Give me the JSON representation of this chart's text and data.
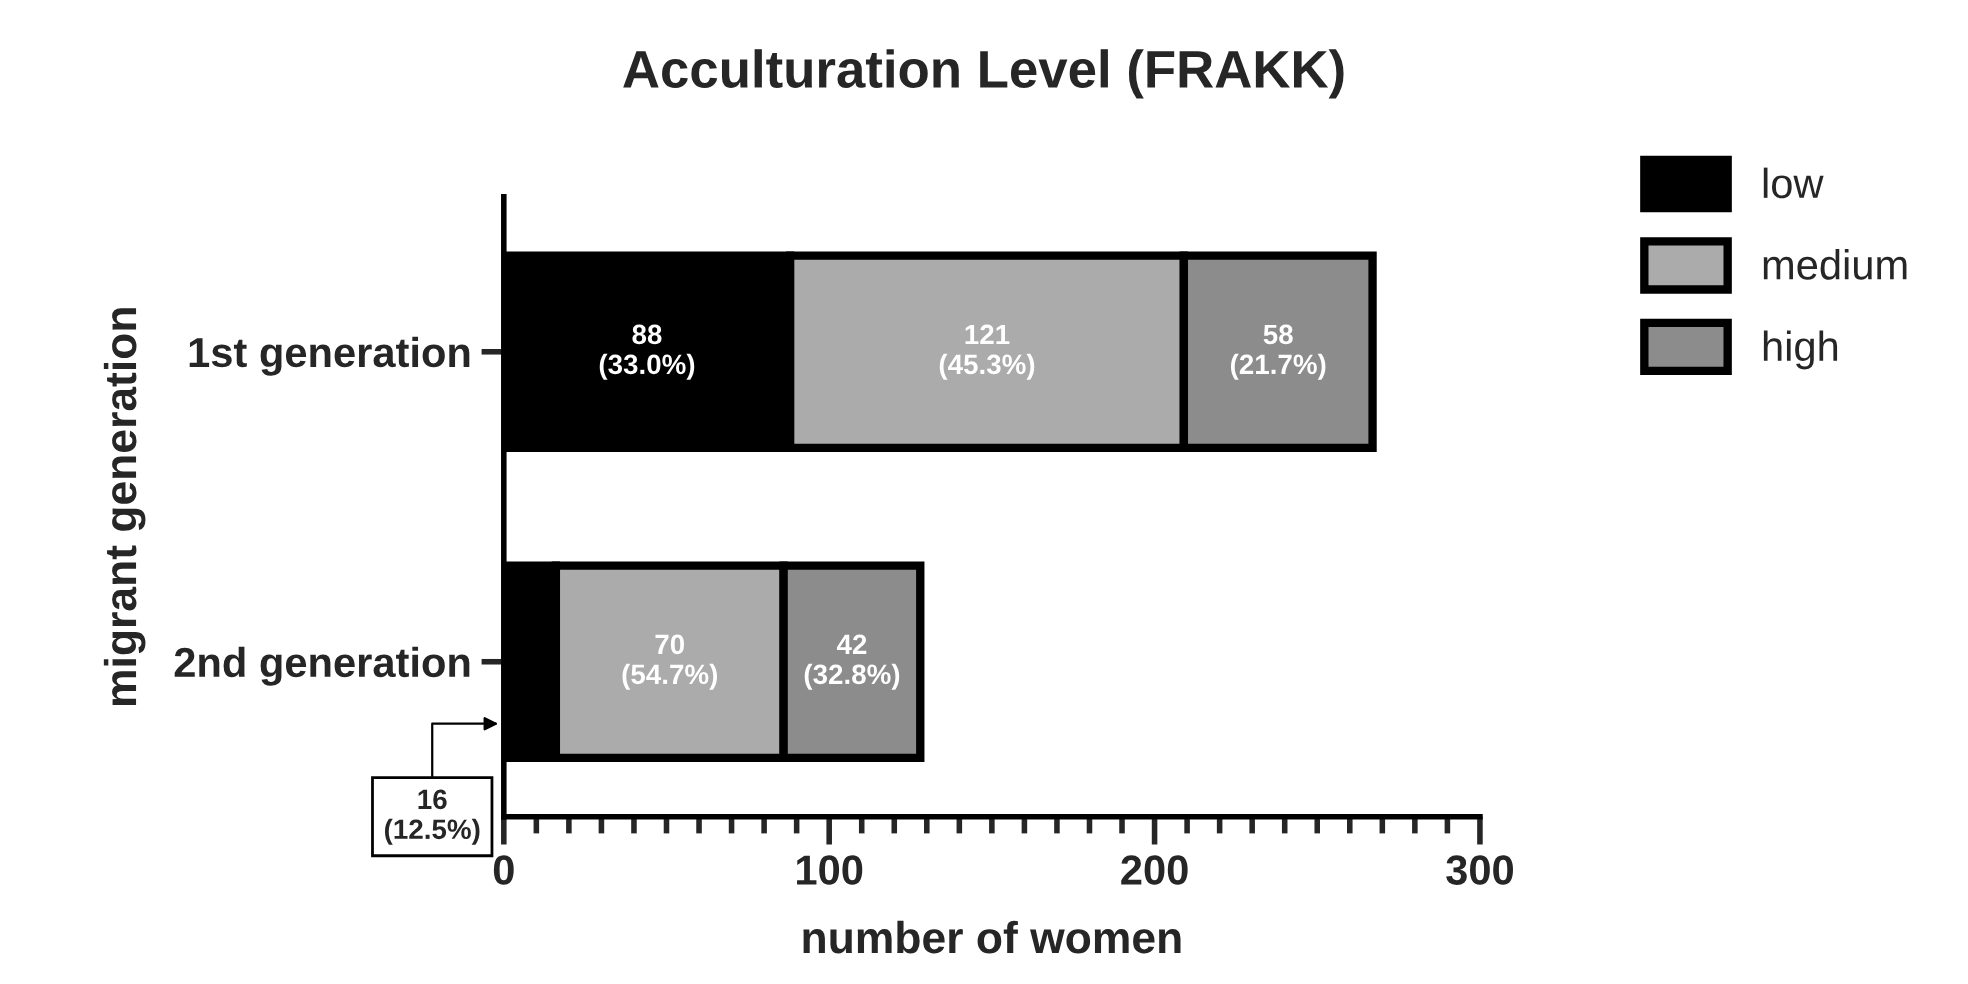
{
  "chart_data": {
    "type": "bar",
    "orientation": "horizontal",
    "stacked": true,
    "title": "Acculturation Level (FRAKK)",
    "xlabel": "number of women",
    "ylabel": "migrant generation",
    "categories": [
      "1st generation",
      "2nd generation"
    ],
    "series": [
      {
        "name": "low",
        "color": "#000000",
        "values": [
          88,
          16
        ],
        "value_labels": [
          "88\n(33.0%)",
          "16\n(12.5%)"
        ]
      },
      {
        "name": "medium",
        "color": "#ababab",
        "values": [
          121,
          70
        ],
        "value_labels": [
          "121\n(45.3%)",
          "70\n(54.7%)"
        ]
      },
      {
        "name": "high",
        "color": "#8c8c8c",
        "values": [
          58,
          42
        ],
        "value_labels": [
          "58\n(21.7%)",
          "42\n(32.8%)"
        ]
      }
    ],
    "xlim": [
      0,
      300
    ],
    "xticks": [
      0,
      {
        "value": 10,
        "label": null
      },
      {
        "value": 20,
        "label": null
      },
      {
        "value": 30,
        "label": null
      },
      {
        "value": 40,
        "label": null
      },
      {
        "value": 50,
        "label": null
      },
      {
        "value": 60,
        "label": null
      },
      {
        "value": 70,
        "label": null
      },
      {
        "value": 80,
        "label": null
      },
      {
        "value": 90,
        "label": null
      },
      100,
      {
        "value": 110,
        "label": null
      },
      {
        "value": 120,
        "label": null
      },
      {
        "value": 130,
        "label": null
      },
      {
        "value": 140,
        "label": null
      },
      {
        "value": 150,
        "label": null
      },
      {
        "value": 160,
        "label": null
      },
      {
        "value": 170,
        "label": null
      },
      {
        "value": 180,
        "label": null
      },
      {
        "value": 190,
        "label": null
      },
      200,
      {
        "value": 210,
        "label": null
      },
      {
        "value": 220,
        "label": null
      },
      {
        "value": 230,
        "label": null
      },
      {
        "value": 240,
        "label": null
      },
      {
        "value": 250,
        "label": null
      },
      {
        "value": 260,
        "label": null
      },
      {
        "value": 270,
        "label": null
      },
      {
        "value": 280,
        "label": null
      },
      {
        "value": 290,
        "label": null
      },
      300
    ],
    "legend": "top right",
    "grid": false
  }
}
